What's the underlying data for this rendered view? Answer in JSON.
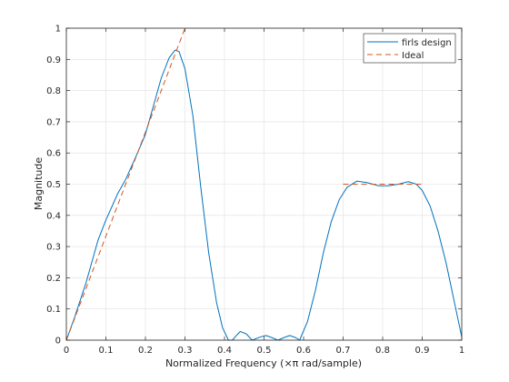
{
  "chart_data": {
    "type": "line",
    "xlabel": "Normalized Frequency (×π rad/sample)",
    "ylabel": "Magnitude",
    "xlim": [
      0,
      1
    ],
    "ylim": [
      0,
      1
    ],
    "xticks": [
      "0",
      "0.1",
      "0.2",
      "0.3",
      "0.4",
      "0.5",
      "0.6",
      "0.7",
      "0.8",
      "0.9",
      "1"
    ],
    "yticks": [
      "0",
      "0.1",
      "0.2",
      "0.3",
      "0.4",
      "0.5",
      "0.6",
      "0.7",
      "0.8",
      "0.9",
      "1"
    ],
    "grid": true,
    "legend_position": "top-right",
    "series": [
      {
        "name": "firls design",
        "color": "#0072BD",
        "style": "solid",
        "points": [
          [
            0,
            0
          ],
          [
            0.02,
            0.07
          ],
          [
            0.05,
            0.185
          ],
          [
            0.08,
            0.32
          ],
          [
            0.1,
            0.385
          ],
          [
            0.13,
            0.47
          ],
          [
            0.15,
            0.515
          ],
          [
            0.18,
            0.6
          ],
          [
            0.2,
            0.66
          ],
          [
            0.22,
            0.75
          ],
          [
            0.24,
            0.84
          ],
          [
            0.26,
            0.905
          ],
          [
            0.275,
            0.93
          ],
          [
            0.285,
            0.925
          ],
          [
            0.3,
            0.87
          ],
          [
            0.32,
            0.72
          ],
          [
            0.34,
            0.49
          ],
          [
            0.36,
            0.28
          ],
          [
            0.38,
            0.12
          ],
          [
            0.395,
            0.04
          ],
          [
            0.41,
            0.0
          ],
          [
            0.42,
            0.0
          ],
          [
            0.43,
            0.015
          ],
          [
            0.44,
            0.028
          ],
          [
            0.455,
            0.02
          ],
          [
            0.47,
            0.0
          ],
          [
            0.49,
            0.01
          ],
          [
            0.505,
            0.015
          ],
          [
            0.52,
            0.008
          ],
          [
            0.535,
            0.0
          ],
          [
            0.55,
            0.008
          ],
          [
            0.565,
            0.015
          ],
          [
            0.58,
            0.008
          ],
          [
            0.59,
            0.0
          ],
          [
            0.61,
            0.06
          ],
          [
            0.63,
            0.16
          ],
          [
            0.65,
            0.28
          ],
          [
            0.67,
            0.38
          ],
          [
            0.69,
            0.45
          ],
          [
            0.71,
            0.49
          ],
          [
            0.735,
            0.51
          ],
          [
            0.76,
            0.505
          ],
          [
            0.79,
            0.495
          ],
          [
            0.815,
            0.495
          ],
          [
            0.84,
            0.5
          ],
          [
            0.865,
            0.508
          ],
          [
            0.885,
            0.5
          ],
          [
            0.9,
            0.48
          ],
          [
            0.92,
            0.43
          ],
          [
            0.94,
            0.35
          ],
          [
            0.96,
            0.25
          ],
          [
            0.98,
            0.13
          ],
          [
            1.0,
            0.01
          ]
        ]
      },
      {
        "name": "Ideal",
        "color": "#D95319",
        "style": "dashed",
        "segments": [
          [
            [
              0,
              0
            ],
            [
              0.3,
              1
            ]
          ],
          [
            [
              0.7,
              0.5
            ],
            [
              0.9,
              0.5
            ]
          ]
        ]
      }
    ]
  }
}
